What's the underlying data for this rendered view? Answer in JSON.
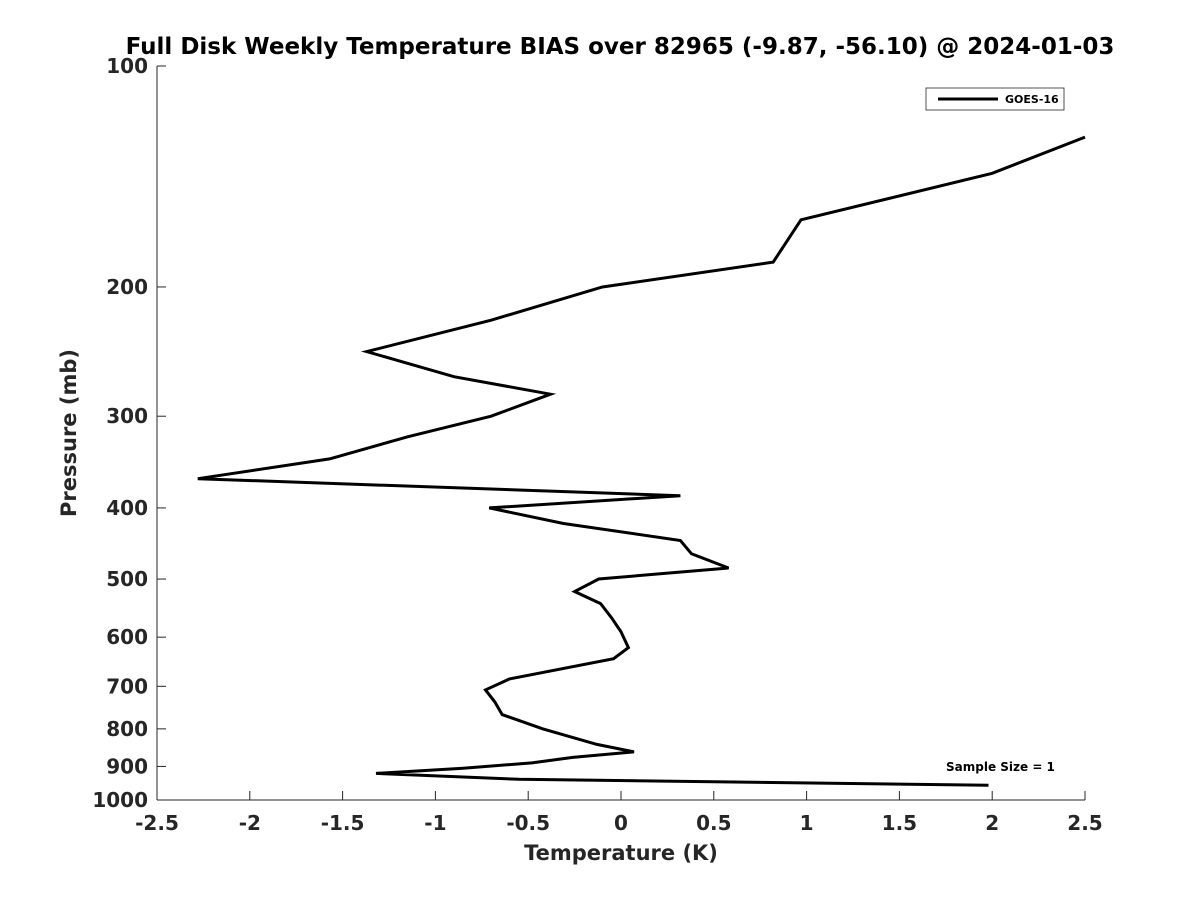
{
  "chart_data": {
    "type": "line",
    "title": "Full Disk Weekly Temperature BIAS over 82965 (-9.87, -56.10) @ 2024-01-03",
    "xlabel": "Temperature (K)",
    "ylabel": "Pressure (mb)",
    "xlim": [
      -2.5,
      2.5
    ],
    "ylim": [
      100,
      1000
    ],
    "y_scale": "log",
    "y_reversed": true,
    "grid": false,
    "legend_position": "top-right",
    "x_ticks": [
      -2.5,
      -2,
      -1.5,
      -1,
      -0.5,
      0,
      0.5,
      1,
      1.5,
      2,
      2.5
    ],
    "x_tick_labels": [
      "-2.5",
      "-2",
      "-1.5",
      "-1",
      "-0.5",
      "0",
      "0.5",
      "1",
      "1.5",
      "2",
      "2.5"
    ],
    "y_ticks": [
      100,
      200,
      300,
      400,
      500,
      600,
      700,
      800,
      900,
      1000
    ],
    "y_tick_labels": [
      "100",
      "200",
      "300",
      "400",
      "500",
      "600",
      "700",
      "800",
      "900",
      "1000"
    ],
    "annotation": "Sample Size = 1",
    "series": [
      {
        "name": "GOES-16",
        "color": "#000000",
        "points": [
          {
            "x": 2.5,
            "y": 125
          },
          {
            "x": 2.0,
            "y": 140
          },
          {
            "x": 0.97,
            "y": 162
          },
          {
            "x": 0.82,
            "y": 185
          },
          {
            "x": -0.1,
            "y": 200
          },
          {
            "x": -0.7,
            "y": 222
          },
          {
            "x": -1.37,
            "y": 245
          },
          {
            "x": -0.9,
            "y": 265
          },
          {
            "x": -0.38,
            "y": 280
          },
          {
            "x": -0.7,
            "y": 300
          },
          {
            "x": -1.15,
            "y": 320
          },
          {
            "x": -1.57,
            "y": 343
          },
          {
            "x": -2.28,
            "y": 365
          },
          {
            "x": 0.32,
            "y": 385
          },
          {
            "x": -0.71,
            "y": 400
          },
          {
            "x": -0.31,
            "y": 420
          },
          {
            "x": 0.32,
            "y": 443
          },
          {
            "x": 0.38,
            "y": 462
          },
          {
            "x": 0.58,
            "y": 483
          },
          {
            "x": -0.12,
            "y": 500
          },
          {
            "x": -0.25,
            "y": 520
          },
          {
            "x": -0.11,
            "y": 540
          },
          {
            "x": -0.05,
            "y": 565
          },
          {
            "x": 0.0,
            "y": 590
          },
          {
            "x": 0.04,
            "y": 620
          },
          {
            "x": -0.04,
            "y": 642
          },
          {
            "x": -0.6,
            "y": 684
          },
          {
            "x": -0.73,
            "y": 708
          },
          {
            "x": -0.68,
            "y": 735
          },
          {
            "x": -0.64,
            "y": 765
          },
          {
            "x": -0.42,
            "y": 800
          },
          {
            "x": -0.13,
            "y": 840
          },
          {
            "x": 0.07,
            "y": 860
          },
          {
            "x": -0.26,
            "y": 875
          },
          {
            "x": -0.48,
            "y": 890
          },
          {
            "x": -0.85,
            "y": 905
          },
          {
            "x": -1.32,
            "y": 920
          },
          {
            "x": -0.55,
            "y": 937
          },
          {
            "x": 1.98,
            "y": 955
          }
        ]
      }
    ]
  }
}
